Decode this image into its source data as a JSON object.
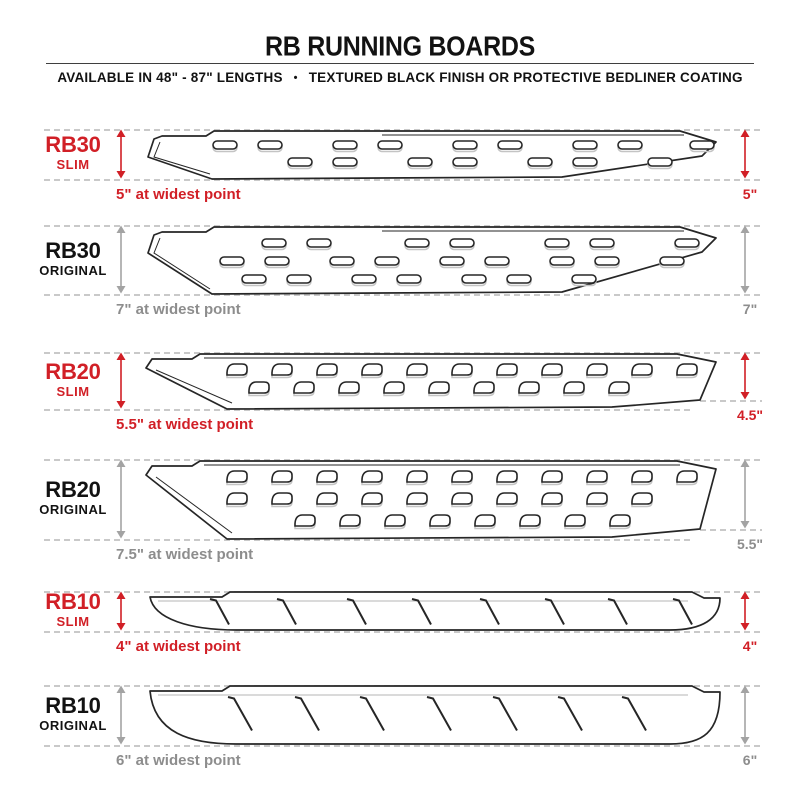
{
  "header": {
    "title": "RB RUNNING BOARDS",
    "subtitle_lengths": "AVAILABLE IN 48\" - 87\" LENGTHS",
    "subtitle_separator": "•",
    "subtitle_finish": "TEXTURED BLACK FINISH OR PROTECTIVE BEDLINER COATING"
  },
  "colors": {
    "accent_red": "#d11f26",
    "gray_text": "#8d8d8d",
    "gray_arrow": "#a3a3a3",
    "dash_gray": "#c9c9c9",
    "line_dark": "#262626",
    "black_text": "#121212"
  },
  "boards": [
    {
      "model": "RB30",
      "variant": "SLIM",
      "width_note": "5\" at widest point",
      "end_height_label": "5\"",
      "accent": "red",
      "tread": "oval-slots",
      "tread_rows": 2
    },
    {
      "model": "RB30",
      "variant": "ORIGINAL",
      "width_note": "7\" at widest point",
      "end_height_label": "7\"",
      "accent": "gray",
      "tread": "oval-slots",
      "tread_rows": 3
    },
    {
      "model": "RB20",
      "variant": "SLIM",
      "width_note": "5.5\" at widest point",
      "end_height_label": "4.5\"",
      "accent": "red",
      "tread": "d-slots",
      "tread_rows": 2
    },
    {
      "model": "RB20",
      "variant": "ORIGINAL",
      "width_note": "7.5\" at widest point",
      "end_height_label": "5.5\"",
      "accent": "gray",
      "tread": "d-slots",
      "tread_rows": 3
    },
    {
      "model": "RB10",
      "variant": "SLIM",
      "width_note": "4\" at widest point",
      "end_height_label": "4\"",
      "accent": "red",
      "tread": "slash-marks",
      "tread_count": 8
    },
    {
      "model": "RB10",
      "variant": "ORIGINAL",
      "width_note": "6\" at widest point",
      "end_height_label": "6\"",
      "accent": "gray",
      "tread": "slash-marks",
      "tread_count": 7
    }
  ]
}
